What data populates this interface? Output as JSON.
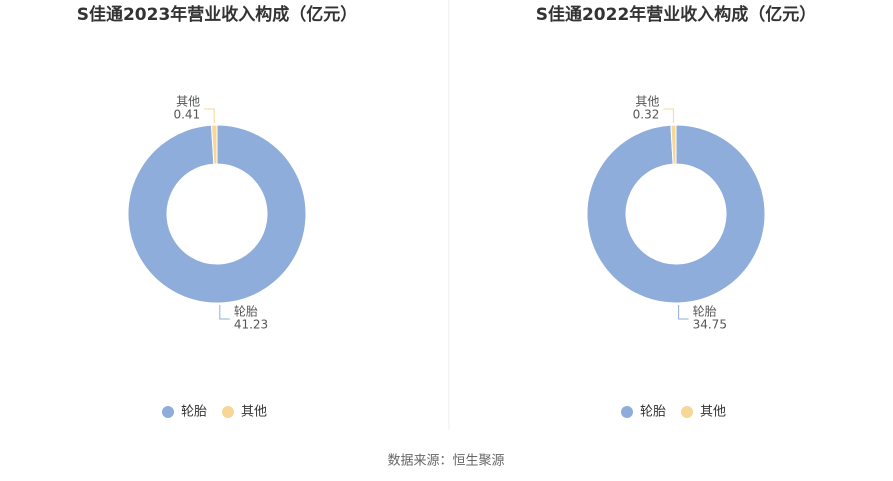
{
  "chart_data": [
    {
      "type": "pie",
      "title": "S佳通2023年营业收入构成（亿元）",
      "categories": [
        "轮胎",
        "其他"
      ],
      "values": [
        41.23,
        0.41
      ],
      "colors": [
        "#8eaddb",
        "#f8d796"
      ]
    },
    {
      "type": "pie",
      "title": "S佳通2022年营业收入构成（亿元）",
      "categories": [
        "轮胎",
        "其他"
      ],
      "values": [
        34.75,
        0.32
      ],
      "colors": [
        "#8eaddb",
        "#f8d796"
      ]
    }
  ],
  "source": "数据来源：恒生聚源"
}
